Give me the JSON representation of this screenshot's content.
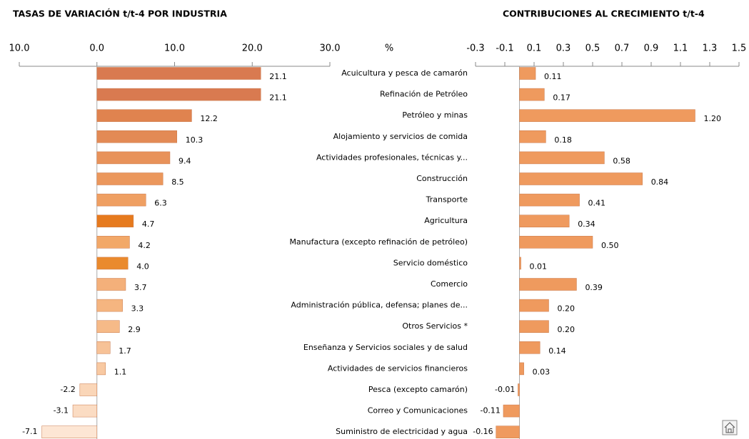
{
  "chart_data": [
    {
      "type": "bar",
      "orientation": "horizontal",
      "title": "TASAS DE VARIACIÓN t/t-4 POR INDUSTRIA",
      "values": [
        21.1,
        21.1,
        12.2,
        10.3,
        9.4,
        8.5,
        6.3,
        4.7,
        4.2,
        4.0,
        3.7,
        3.3,
        2.9,
        1.7,
        1.1,
        -2.2,
        -3.1,
        -7.1
      ],
      "value_labels": [
        "21.1",
        "21.1",
        "12.2",
        "10.3",
        "9.4",
        "8.5",
        "6.3",
        "4.7",
        "4.2",
        "4.0",
        "3.7",
        "3.3",
        "2.9",
        "1.7",
        "1.1",
        "-2.2",
        "-3.1",
        "-7.1"
      ],
      "colors": [
        "#d97a50",
        "#d97a50",
        "#e0834f",
        "#e38a55",
        "#e8925a",
        "#eb975c",
        "#ef9f62",
        "#e67a1e",
        "#f2a868",
        "#ea8a2e",
        "#f4b07a",
        "#f5b580",
        "#f6ba88",
        "#f7c297",
        "#f8c9a2",
        "#fad6b8",
        "#fbdcc3",
        "#fde6d4"
      ],
      "xlim": [
        -10,
        30
      ],
      "xticks": [
        {
          "value": -10,
          "label": "10.0"
        },
        {
          "value": 0,
          "label": "0.0"
        },
        {
          "value": 10,
          "label": "10.0"
        },
        {
          "value": 20,
          "label": "20.0"
        },
        {
          "value": 30,
          "label": "30.0"
        }
      ]
    },
    {
      "type": "bar",
      "orientation": "horizontal",
      "title": "CONTRIBUCIONES AL CRECIMIENTO t/t-4",
      "x_label": "%",
      "categories": [
        "Acuicultura y pesca de camarón",
        "Refinación de Petróleo",
        "Petróleo y minas",
        "Alojamiento y servicios de comida",
        "Actividades profesionales, técnicas y...",
        "Construcción",
        "Transporte",
        "Agricultura",
        "Manufactura (excepto refinación de petróleo)",
        "Servicio doméstico",
        "Comercio",
        "Administración pública, defensa; planes de...",
        "Otros Servicios *",
        "Enseñanza  y Servicios sociales y de salud",
        "Actividades de servicios financieros",
        "Pesca (excepto camarón)",
        "Correo y Comunicaciones",
        "Suministro de electricidad y agua"
      ],
      "values": [
        0.11,
        0.17,
        1.2,
        0.18,
        0.58,
        0.84,
        0.41,
        0.34,
        0.5,
        0.01,
        0.39,
        0.2,
        0.2,
        0.14,
        0.03,
        -0.01,
        -0.11,
        -0.16
      ],
      "value_labels": [
        "0.11",
        "0.17",
        "1.20",
        "0.18",
        "0.58",
        "0.84",
        "0.41",
        "0.34",
        "0.50",
        "0.01",
        "0.39",
        "0.20",
        "0.20",
        "0.14",
        "0.03",
        "-0.01",
        "-0.11",
        "-0.16"
      ],
      "color": "#ef9a5e",
      "negative_color": "#ff0000",
      "xlim": [
        -0.3,
        1.5
      ],
      "xticks": [
        -0.3,
        -0.1,
        0.1,
        0.3,
        0.5,
        0.7,
        0.9,
        1.1,
        1.3,
        1.5
      ]
    }
  ]
}
